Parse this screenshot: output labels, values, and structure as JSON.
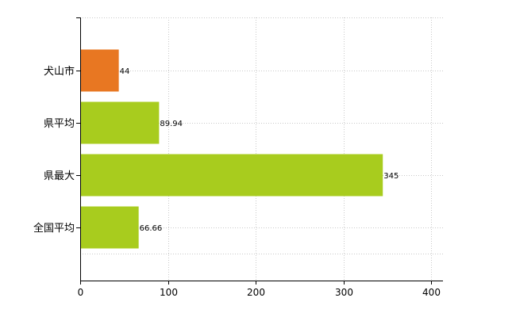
{
  "chart_data": {
    "type": "bar",
    "orientation": "horizontal",
    "categories": [
      "犬山市",
      "県平均",
      "県最大",
      "全国平均"
    ],
    "values": [
      44,
      89.94,
      345,
      66.66
    ],
    "value_labels": [
      "44",
      "89.94",
      "345",
      "66.66"
    ],
    "bar_colors": [
      "#E87722",
      "#A8CC1E",
      "#A8CC1E",
      "#A8CC1E"
    ],
    "xlim": [
      0,
      400
    ],
    "xticks": [
      0,
      100,
      200,
      300,
      400
    ],
    "xtick_labels": [
      "0",
      "100",
      "200",
      "300",
      "400"
    ],
    "title": "",
    "xlabel": "",
    "ylabel": "",
    "grid": true,
    "legend": "none"
  }
}
